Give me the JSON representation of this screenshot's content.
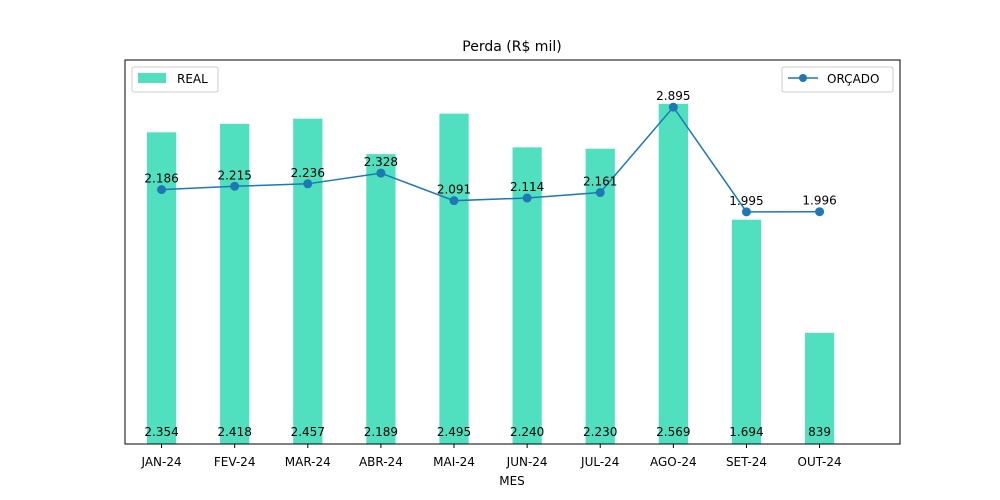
{
  "chart_data": {
    "type": "bar",
    "title": "Perda (R$ mil)",
    "xlabel": "MES",
    "ylabel": "",
    "categories": [
      "JAN-24",
      "FEV-24",
      "MAR-24",
      "ABR-24",
      "MAI-24",
      "JUN-24",
      "JUL-24",
      "AGO-24",
      "SET-24",
      "OUT-24"
    ],
    "series": [
      {
        "name": "REAL",
        "type": "bar",
        "color": "#50e0bf",
        "values": [
          2354,
          2418,
          2457,
          2189,
          2495,
          2240,
          2230,
          2569,
          1694,
          839
        ],
        "labels": [
          "2.354",
          "2.418",
          "2.457",
          "2.189",
          "2.495",
          "2.240",
          "2.230",
          "2.569",
          "1.694",
          "839"
        ],
        "axis": "left"
      },
      {
        "name": "ORÇADO",
        "type": "line",
        "color": "#1f77b4",
        "values": [
          2186,
          2215,
          2236,
          2328,
          2091,
          2114,
          2161,
          2895,
          1995,
          1996
        ],
        "labels": [
          "2.186",
          "2.215",
          "2.236",
          "2.328",
          "2.091",
          "2.114",
          "2.161",
          "2.895",
          "1.995",
          "1.996"
        ],
        "axis": "right"
      }
    ],
    "ylim_left": [
      0,
      2900
    ],
    "ylim_right": [
      0,
      3300
    ],
    "grid": false,
    "legend": [
      {
        "series": "REAL",
        "placement": "top-left"
      },
      {
        "series": "ORÇADO",
        "placement": "top-right"
      }
    ]
  }
}
